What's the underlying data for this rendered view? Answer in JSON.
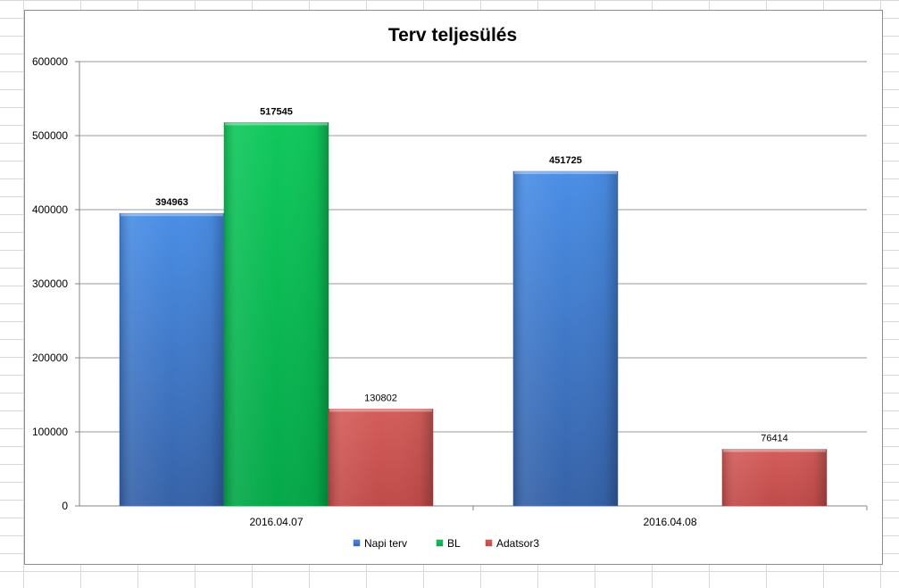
{
  "chart_data": {
    "type": "bar",
    "title": "Terv teljesülés",
    "xlabel": "",
    "ylabel": "",
    "categories": [
      "2016.04.07",
      "2016.04.08"
    ],
    "series": [
      {
        "name": "Napi terv",
        "color": "#4472c4",
        "values": [
          394963,
          451725
        ],
        "labels": [
          "394963",
          "451725"
        ],
        "label_bold": true
      },
      {
        "name": "BL",
        "color": "#00b050",
        "values": [
          517545,
          null
        ],
        "labels": [
          "517545",
          ""
        ],
        "label_bold": true
      },
      {
        "name": "Adatsor3",
        "color": "#c0504d",
        "values": [
          130802,
          76414
        ],
        "labels": [
          "130802",
          "76414"
        ],
        "label_bold": false
      }
    ],
    "ylim": [
      0,
      600000
    ],
    "yticks": [
      "0",
      "100000",
      "200000",
      "300000",
      "400000",
      "500000",
      "600000"
    ],
    "grid": true,
    "legend_position": "bottom"
  }
}
